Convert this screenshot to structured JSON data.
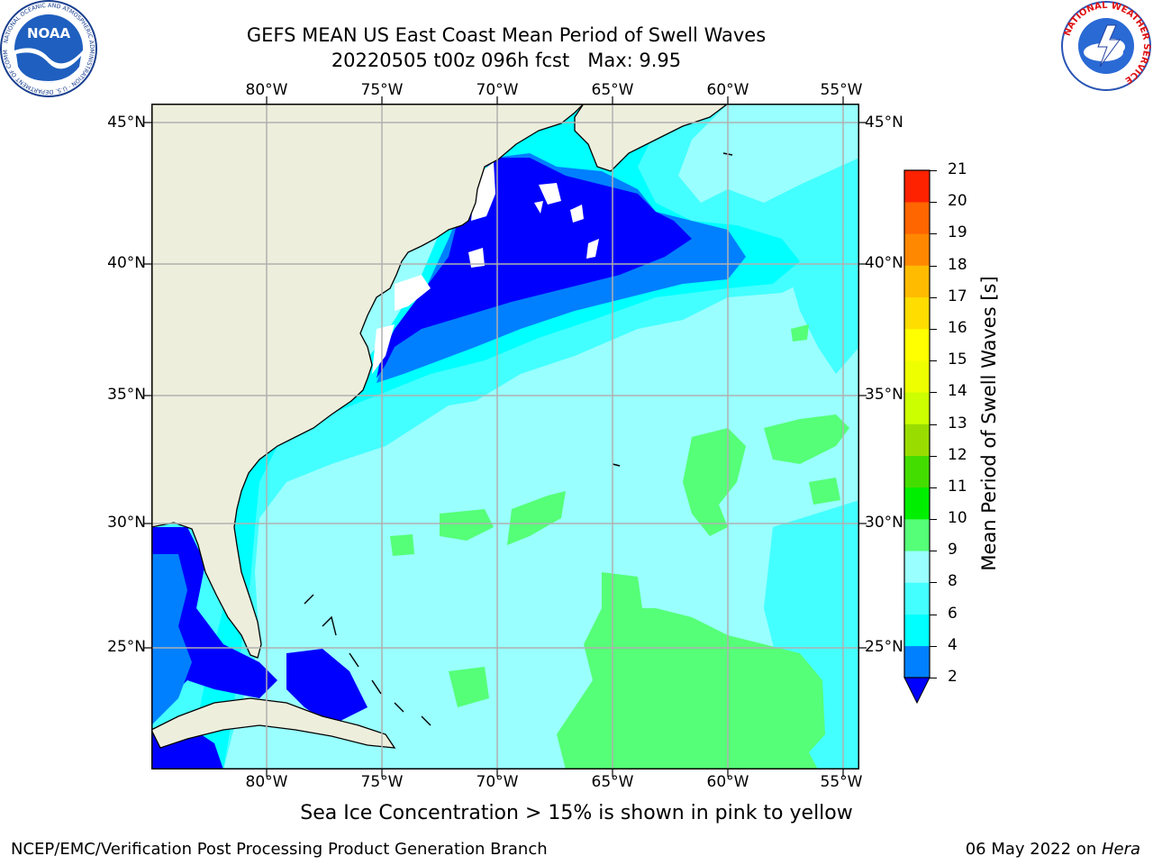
{
  "title": {
    "line1": "GEFS MEAN US East Coast Mean Period of Swell Waves",
    "line2": "20220505 t00z 096h fcst   Max: 9.95"
  },
  "logos": {
    "noaa": "NOAA",
    "noaa_ring": "NATIONAL OCEANIC AND ATMOSPHERIC ADMINISTRATION · U.S. DEPARTMENT OF COMMERCE",
    "nws_ring": "NATIONAL WEATHER SERVICE"
  },
  "map": {
    "lon_labels": [
      "80°W",
      "75°W",
      "70°W",
      "65°W",
      "60°W",
      "55°W"
    ],
    "lat_labels": [
      "45°N",
      "40°N",
      "35°N",
      "30°N",
      "25°N"
    ],
    "colors": {
      "land": "#eeeedd",
      "ocean_light": "#99ffff",
      "ocean_mid": "#44ffff",
      "ocean_cyan": "#00ffff",
      "ocean_blue": "#0080ff",
      "ocean_deep": "#0000ff",
      "ocean_green": "#55ff77",
      "grid": "#b0b0b0"
    }
  },
  "colorbar": {
    "label": "Mean Period of Swell Waves [s]",
    "ticks": [
      "2",
      "4",
      "6",
      "8",
      "9",
      "10",
      "11",
      "12",
      "13",
      "14",
      "15",
      "16",
      "17",
      "18",
      "19",
      "20",
      "21"
    ],
    "colors": [
      "#0080ff",
      "#00ffff",
      "#44ffff",
      "#99ffff",
      "#55ff77",
      "#00ee00",
      "#44dd00",
      "#99dd00",
      "#ccff00",
      "#eeff00",
      "#ffff00",
      "#ffdd00",
      "#ffbb00",
      "#ff8800",
      "#ff6600",
      "#ff2200"
    ],
    "under_color": "#0000ff",
    "top_color": "#ff0000"
  },
  "note": "Sea Ice Concentration > 15% is shown in pink to yellow",
  "footer": {
    "left": "NCEP/EMC/Verification Post Processing Product Generation Branch",
    "date": "06 May 2022 on ",
    "machine": "Hera"
  }
}
